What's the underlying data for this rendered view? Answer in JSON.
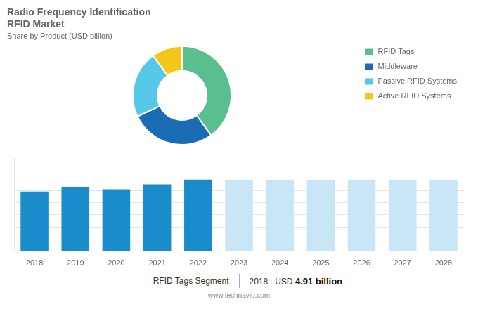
{
  "chart_data": [
    {
      "type": "doughnut",
      "title": [
        "Radio Frequency Identification",
        "RFID Market"
      ],
      "subtitle": "Share by Product (USD billion)",
      "categories": [
        "RFID Tags",
        "Middleware",
        "Passive RFID Systems",
        "Active RFID Systems"
      ],
      "values": [
        40,
        28,
        22,
        10
      ],
      "colors": [
        "#5abf8e",
        "#1a6db5",
        "#55c8e8",
        "#f5c518"
      ],
      "legend": "right"
    },
    {
      "type": "bar",
      "categories": [
        "2018",
        "2019",
        "2020",
        "2021",
        "2022",
        "2023",
        "2024",
        "2025",
        "2026",
        "2027",
        "2028"
      ],
      "values": [
        4.91,
        5.3,
        5.1,
        5.5,
        5.9,
        5.9,
        5.9,
        5.9,
        5.9,
        5.9,
        5.9
      ],
      "colors": [
        "#1a8ccc",
        "#1a8ccc",
        "#1a8ccc",
        "#1a8ccc",
        "#1a8ccc",
        "#c8e6f5",
        "#c8e6f5",
        "#c8e6f5",
        "#c8e6f5",
        "#c8e6f5",
        "#c8e6f5"
      ],
      "ylim": [
        0,
        7.67
      ],
      "yticks": [
        0,
        1,
        2,
        3,
        4,
        5,
        6,
        7
      ],
      "grid": true,
      "tick_labels": "x",
      "annotations": [
        "RFID Tags Segment",
        "2018 : USD ",
        "4.91 billion",
        "www.technavio.com"
      ]
    }
  ]
}
